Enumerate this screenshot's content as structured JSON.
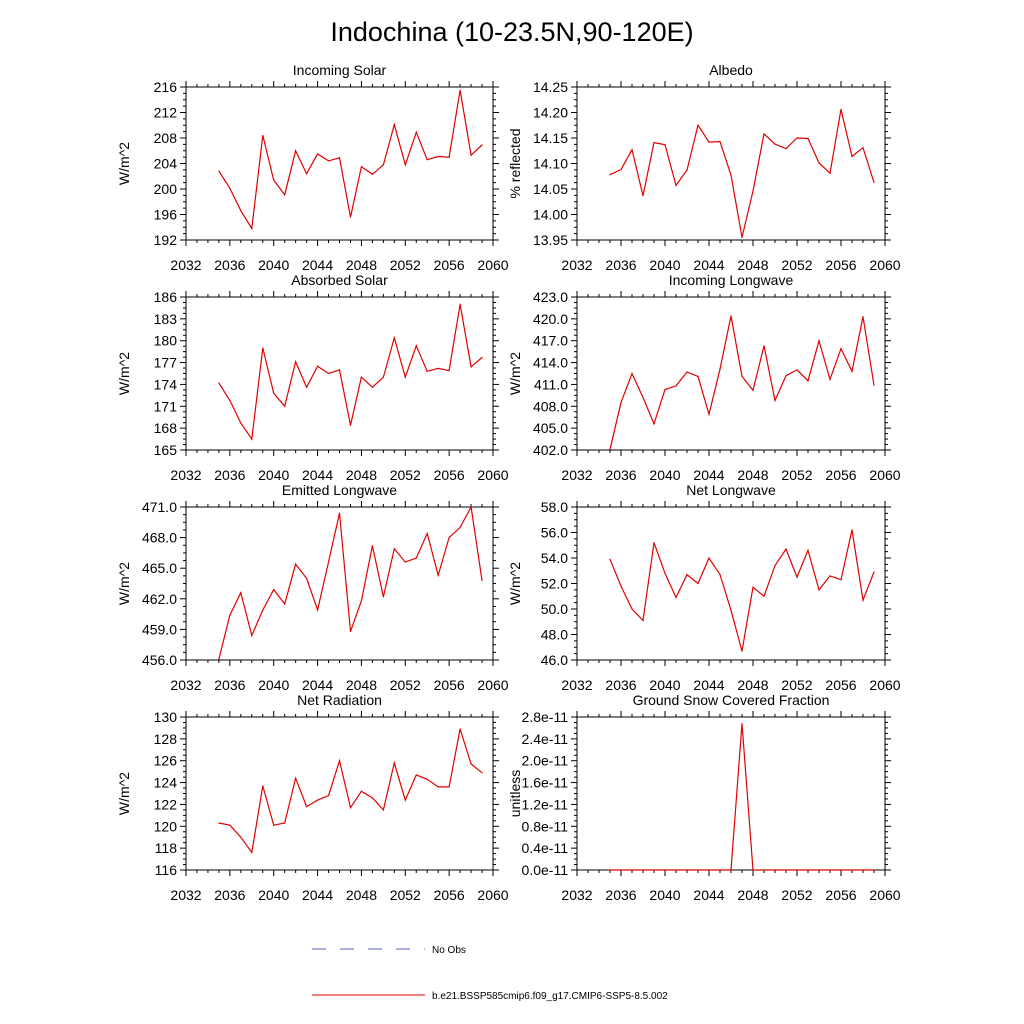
{
  "title": "Indochina (10-23.5N,90-120E)",
  "legend": {
    "items": [
      {
        "label": "No Obs",
        "style": "dashed",
        "color": "#5566bb"
      },
      {
        "label": "b.e21.BSSP585cmip6.f09_g17.CMIP6-SSP5-8.5.002",
        "style": "solid",
        "color": "#e00000"
      }
    ]
  },
  "colors": {
    "series": "#e00000",
    "axis": "#000000",
    "obs": "#5566bb"
  },
  "chart_data": [
    {
      "type": "line",
      "title": "Incoming Solar",
      "ylabel": "W/m^2",
      "xlim": [
        2032,
        2060
      ],
      "ylim": [
        192,
        216
      ],
      "xticks": [
        2032,
        2036,
        2040,
        2044,
        2048,
        2052,
        2056,
        2060
      ],
      "xtick_labels": [
        "2032",
        "2036",
        "2040",
        "2044",
        "2048",
        "2052",
        "2056",
        "2060"
      ],
      "yticks": [
        192,
        196,
        200,
        204,
        208,
        212,
        216
      ],
      "ytick_labels": [
        "192",
        "196",
        "200",
        "204",
        "208",
        "212",
        "216"
      ],
      "series": [
        {
          "color": "#e00000",
          "x": [
            2035,
            2036,
            2037,
            2038,
            2039,
            2040,
            2041,
            2042,
            2043,
            2044,
            2045,
            2046,
            2047,
            2048,
            2049,
            2050,
            2051,
            2052,
            2053,
            2054,
            2055,
            2056,
            2057,
            2058,
            2059
          ],
          "values": [
            202.8,
            200.1,
            196.6,
            193.8,
            208.4,
            201.4,
            199.1,
            206.0,
            202.4,
            205.5,
            204.4,
            204.9,
            195.6,
            203.5,
            202.3,
            203.8,
            210.1,
            203.8,
            208.9,
            204.6,
            205.1,
            205.0,
            215.5,
            205.3,
            206.9
          ]
        }
      ]
    },
    {
      "type": "line",
      "title": "Albedo",
      "ylabel": "% reflected",
      "xlim": [
        2032,
        2060
      ],
      "ylim": [
        13.95,
        14.25
      ],
      "xticks": [
        2032,
        2036,
        2040,
        2044,
        2048,
        2052,
        2056,
        2060
      ],
      "xtick_labels": [
        "2032",
        "2036",
        "2040",
        "2044",
        "2048",
        "2052",
        "2056",
        "2060"
      ],
      "yticks": [
        13.95,
        14.0,
        14.05,
        14.1,
        14.15,
        14.2,
        14.25
      ],
      "ytick_labels": [
        "13.95",
        "14.00",
        "14.05",
        "14.10",
        "14.15",
        "14.20",
        "14.25"
      ],
      "series": [
        {
          "color": "#e00000",
          "x": [
            2035,
            2036,
            2037,
            2038,
            2039,
            2040,
            2041,
            2042,
            2043,
            2044,
            2045,
            2046,
            2047,
            2048,
            2049,
            2050,
            2051,
            2052,
            2053,
            2054,
            2055,
            2056,
            2057,
            2058,
            2059
          ],
          "values": [
            14.078,
            14.088,
            14.127,
            14.037,
            14.141,
            14.137,
            14.057,
            14.087,
            14.175,
            14.142,
            14.143,
            14.077,
            13.955,
            14.046,
            14.158,
            14.138,
            14.129,
            14.15,
            14.149,
            14.101,
            14.081,
            14.206,
            14.114,
            14.131,
            14.063
          ]
        }
      ]
    },
    {
      "type": "line",
      "title": "Absorbed Solar",
      "ylabel": "W/m^2",
      "xlim": [
        2032,
        2060
      ],
      "ylim": [
        165,
        186
      ],
      "xticks": [
        2032,
        2036,
        2040,
        2044,
        2048,
        2052,
        2056,
        2060
      ],
      "xtick_labels": [
        "2032",
        "2036",
        "2040",
        "2044",
        "2048",
        "2052",
        "2056",
        "2060"
      ],
      "yticks": [
        165,
        168,
        171,
        174,
        177,
        180,
        183,
        186
      ],
      "ytick_labels": [
        "165",
        "168",
        "171",
        "174",
        "177",
        "180",
        "183",
        "186"
      ],
      "series": [
        {
          "color": "#e00000",
          "x": [
            2035,
            2036,
            2037,
            2038,
            2039,
            2040,
            2041,
            2042,
            2043,
            2044,
            2045,
            2046,
            2047,
            2048,
            2049,
            2050,
            2051,
            2052,
            2053,
            2054,
            2055,
            2056,
            2057,
            2058,
            2059
          ],
          "values": [
            174.2,
            171.8,
            168.7,
            166.5,
            179.0,
            172.8,
            171.0,
            177.1,
            173.6,
            176.5,
            175.5,
            176.0,
            168.4,
            175.0,
            173.6,
            175.0,
            180.4,
            175.0,
            179.3,
            175.8,
            176.2,
            175.9,
            185.0,
            176.4,
            177.7
          ]
        }
      ]
    },
    {
      "type": "line",
      "title": "Incoming Longwave",
      "ylabel": "W/m^2",
      "xlim": [
        2032,
        2060
      ],
      "ylim": [
        402,
        423
      ],
      "xticks": [
        2032,
        2036,
        2040,
        2044,
        2048,
        2052,
        2056,
        2060
      ],
      "xtick_labels": [
        "2032",
        "2036",
        "2040",
        "2044",
        "2048",
        "2052",
        "2056",
        "2060"
      ],
      "yticks": [
        402,
        405,
        408,
        411,
        414,
        417,
        420,
        423
      ],
      "ytick_labels": [
        "402.0",
        "405.0",
        "408.0",
        "411.0",
        "414.0",
        "417.0",
        "420.0",
        "423.0"
      ],
      "series": [
        {
          "color": "#e00000",
          "x": [
            2035,
            2036,
            2037,
            2038,
            2039,
            2040,
            2041,
            2042,
            2043,
            2044,
            2045,
            2046,
            2047,
            2048,
            2049,
            2050,
            2051,
            2052,
            2053,
            2054,
            2055,
            2056,
            2057,
            2058,
            2059
          ],
          "values": [
            402.1,
            408.5,
            412.5,
            409.2,
            405.6,
            410.3,
            410.8,
            412.7,
            412.1,
            406.9,
            413.1,
            420.4,
            412.1,
            410.2,
            416.3,
            408.8,
            412.2,
            413.0,
            411.5,
            417.0,
            411.7,
            415.9,
            412.8,
            420.3,
            410.9
          ]
        }
      ]
    },
    {
      "type": "line",
      "title": "Emitted Longwave",
      "ylabel": "W/m^2",
      "xlim": [
        2032,
        2060
      ],
      "ylim": [
        456,
        471
      ],
      "xticks": [
        2032,
        2036,
        2040,
        2044,
        2048,
        2052,
        2056,
        2060
      ],
      "xtick_labels": [
        "2032",
        "2036",
        "2040",
        "2044",
        "2048",
        "2052",
        "2056",
        "2060"
      ],
      "yticks": [
        456,
        459,
        462,
        465,
        468,
        471
      ],
      "ytick_labels": [
        "456.0",
        "459.0",
        "462.0",
        "465.0",
        "468.0",
        "471.0"
      ],
      "series": [
        {
          "color": "#e00000",
          "x": [
            2035,
            2036,
            2037,
            2038,
            2039,
            2040,
            2041,
            2042,
            2043,
            2044,
            2045,
            2046,
            2047,
            2048,
            2049,
            2050,
            2051,
            2052,
            2053,
            2054,
            2055,
            2056,
            2057,
            2058,
            2059
          ],
          "values": [
            456.1,
            460.4,
            462.6,
            458.4,
            460.9,
            462.9,
            461.5,
            465.4,
            464.0,
            460.9,
            465.6,
            470.4,
            458.8,
            461.8,
            467.2,
            462.2,
            466.9,
            465.6,
            466.0,
            468.4,
            464.3,
            468.0,
            469.0,
            471.0,
            463.8
          ]
        }
      ]
    },
    {
      "type": "line",
      "title": "Net Longwave",
      "ylabel": "W/m^2",
      "xlim": [
        2032,
        2060
      ],
      "ylim": [
        46,
        58
      ],
      "xticks": [
        2032,
        2036,
        2040,
        2044,
        2048,
        2052,
        2056,
        2060
      ],
      "xtick_labels": [
        "2032",
        "2036",
        "2040",
        "2044",
        "2048",
        "2052",
        "2056",
        "2060"
      ],
      "yticks": [
        46,
        48,
        50,
        52,
        54,
        56,
        58
      ],
      "ytick_labels": [
        "46.0",
        "48.0",
        "50.0",
        "52.0",
        "54.0",
        "56.0",
        "58.0"
      ],
      "series": [
        {
          "color": "#e00000",
          "x": [
            2035,
            2036,
            2037,
            2038,
            2039,
            2040,
            2041,
            2042,
            2043,
            2044,
            2045,
            2046,
            2047,
            2048,
            2049,
            2050,
            2051,
            2052,
            2053,
            2054,
            2055,
            2056,
            2057,
            2058,
            2059
          ],
          "values": [
            53.9,
            51.8,
            50.0,
            49.1,
            55.2,
            52.8,
            50.9,
            52.7,
            52.0,
            54.0,
            52.7,
            49.9,
            46.7,
            51.7,
            51.0,
            53.4,
            54.7,
            52.5,
            54.6,
            51.5,
            52.6,
            52.3,
            56.2,
            50.7,
            52.9
          ]
        }
      ]
    },
    {
      "type": "line",
      "title": "Net Radiation",
      "ylabel": "W/m^2",
      "xlim": [
        2032,
        2060
      ],
      "ylim": [
        116,
        130
      ],
      "xticks": [
        2032,
        2036,
        2040,
        2044,
        2048,
        2052,
        2056,
        2060
      ],
      "xtick_labels": [
        "2032",
        "2036",
        "2040",
        "2044",
        "2048",
        "2052",
        "2056",
        "2060"
      ],
      "yticks": [
        116,
        118,
        120,
        122,
        124,
        126,
        128,
        130
      ],
      "ytick_labels": [
        "116",
        "118",
        "120",
        "122",
        "124",
        "126",
        "128",
        "130"
      ],
      "series": [
        {
          "color": "#e00000",
          "x": [
            2035,
            2036,
            2037,
            2038,
            2039,
            2040,
            2041,
            2042,
            2043,
            2044,
            2045,
            2046,
            2047,
            2048,
            2049,
            2050,
            2051,
            2052,
            2053,
            2054,
            2055,
            2056,
            2057,
            2058,
            2059
          ],
          "values": [
            120.3,
            120.1,
            119.0,
            117.6,
            123.7,
            120.1,
            120.3,
            124.4,
            121.8,
            122.4,
            122.8,
            126.0,
            121.7,
            123.2,
            122.6,
            121.5,
            125.8,
            122.4,
            124.7,
            124.3,
            123.6,
            123.6,
            128.9,
            125.7,
            124.9
          ]
        }
      ]
    },
    {
      "type": "line",
      "title": "Ground Snow Covered Fraction",
      "ylabel": "unitless",
      "xlim": [
        2032,
        2060
      ],
      "ylim": [
        0,
        2.8e-11
      ],
      "xticks": [
        2032,
        2036,
        2040,
        2044,
        2048,
        2052,
        2056,
        2060
      ],
      "xtick_labels": [
        "2032",
        "2036",
        "2040",
        "2044",
        "2048",
        "2052",
        "2056",
        "2060"
      ],
      "yticks": [
        0,
        4e-12,
        8e-12,
        1.2e-11,
        1.6e-11,
        2e-11,
        2.4e-11,
        2.8e-11
      ],
      "ytick_labels": [
        "0.0e-11",
        "0.4e-11",
        "0.8e-11",
        "1.2e-11",
        "1.6e-11",
        "2.0e-11",
        "2.4e-11",
        "2.8e-11"
      ],
      "series": [
        {
          "color": "#e00000",
          "x": [
            2035,
            2036,
            2037,
            2038,
            2039,
            2040,
            2041,
            2042,
            2043,
            2044,
            2045,
            2046,
            2047,
            2048,
            2049,
            2050,
            2051,
            2052,
            2053,
            2054,
            2055,
            2056,
            2057,
            2058,
            2059
          ],
          "values": [
            0,
            0,
            0,
            0,
            0,
            0,
            0,
            0,
            0,
            0,
            0,
            0,
            2.68e-11,
            0,
            0,
            0,
            0,
            0,
            0,
            0,
            0,
            0,
            0,
            0,
            0
          ]
        }
      ]
    }
  ]
}
